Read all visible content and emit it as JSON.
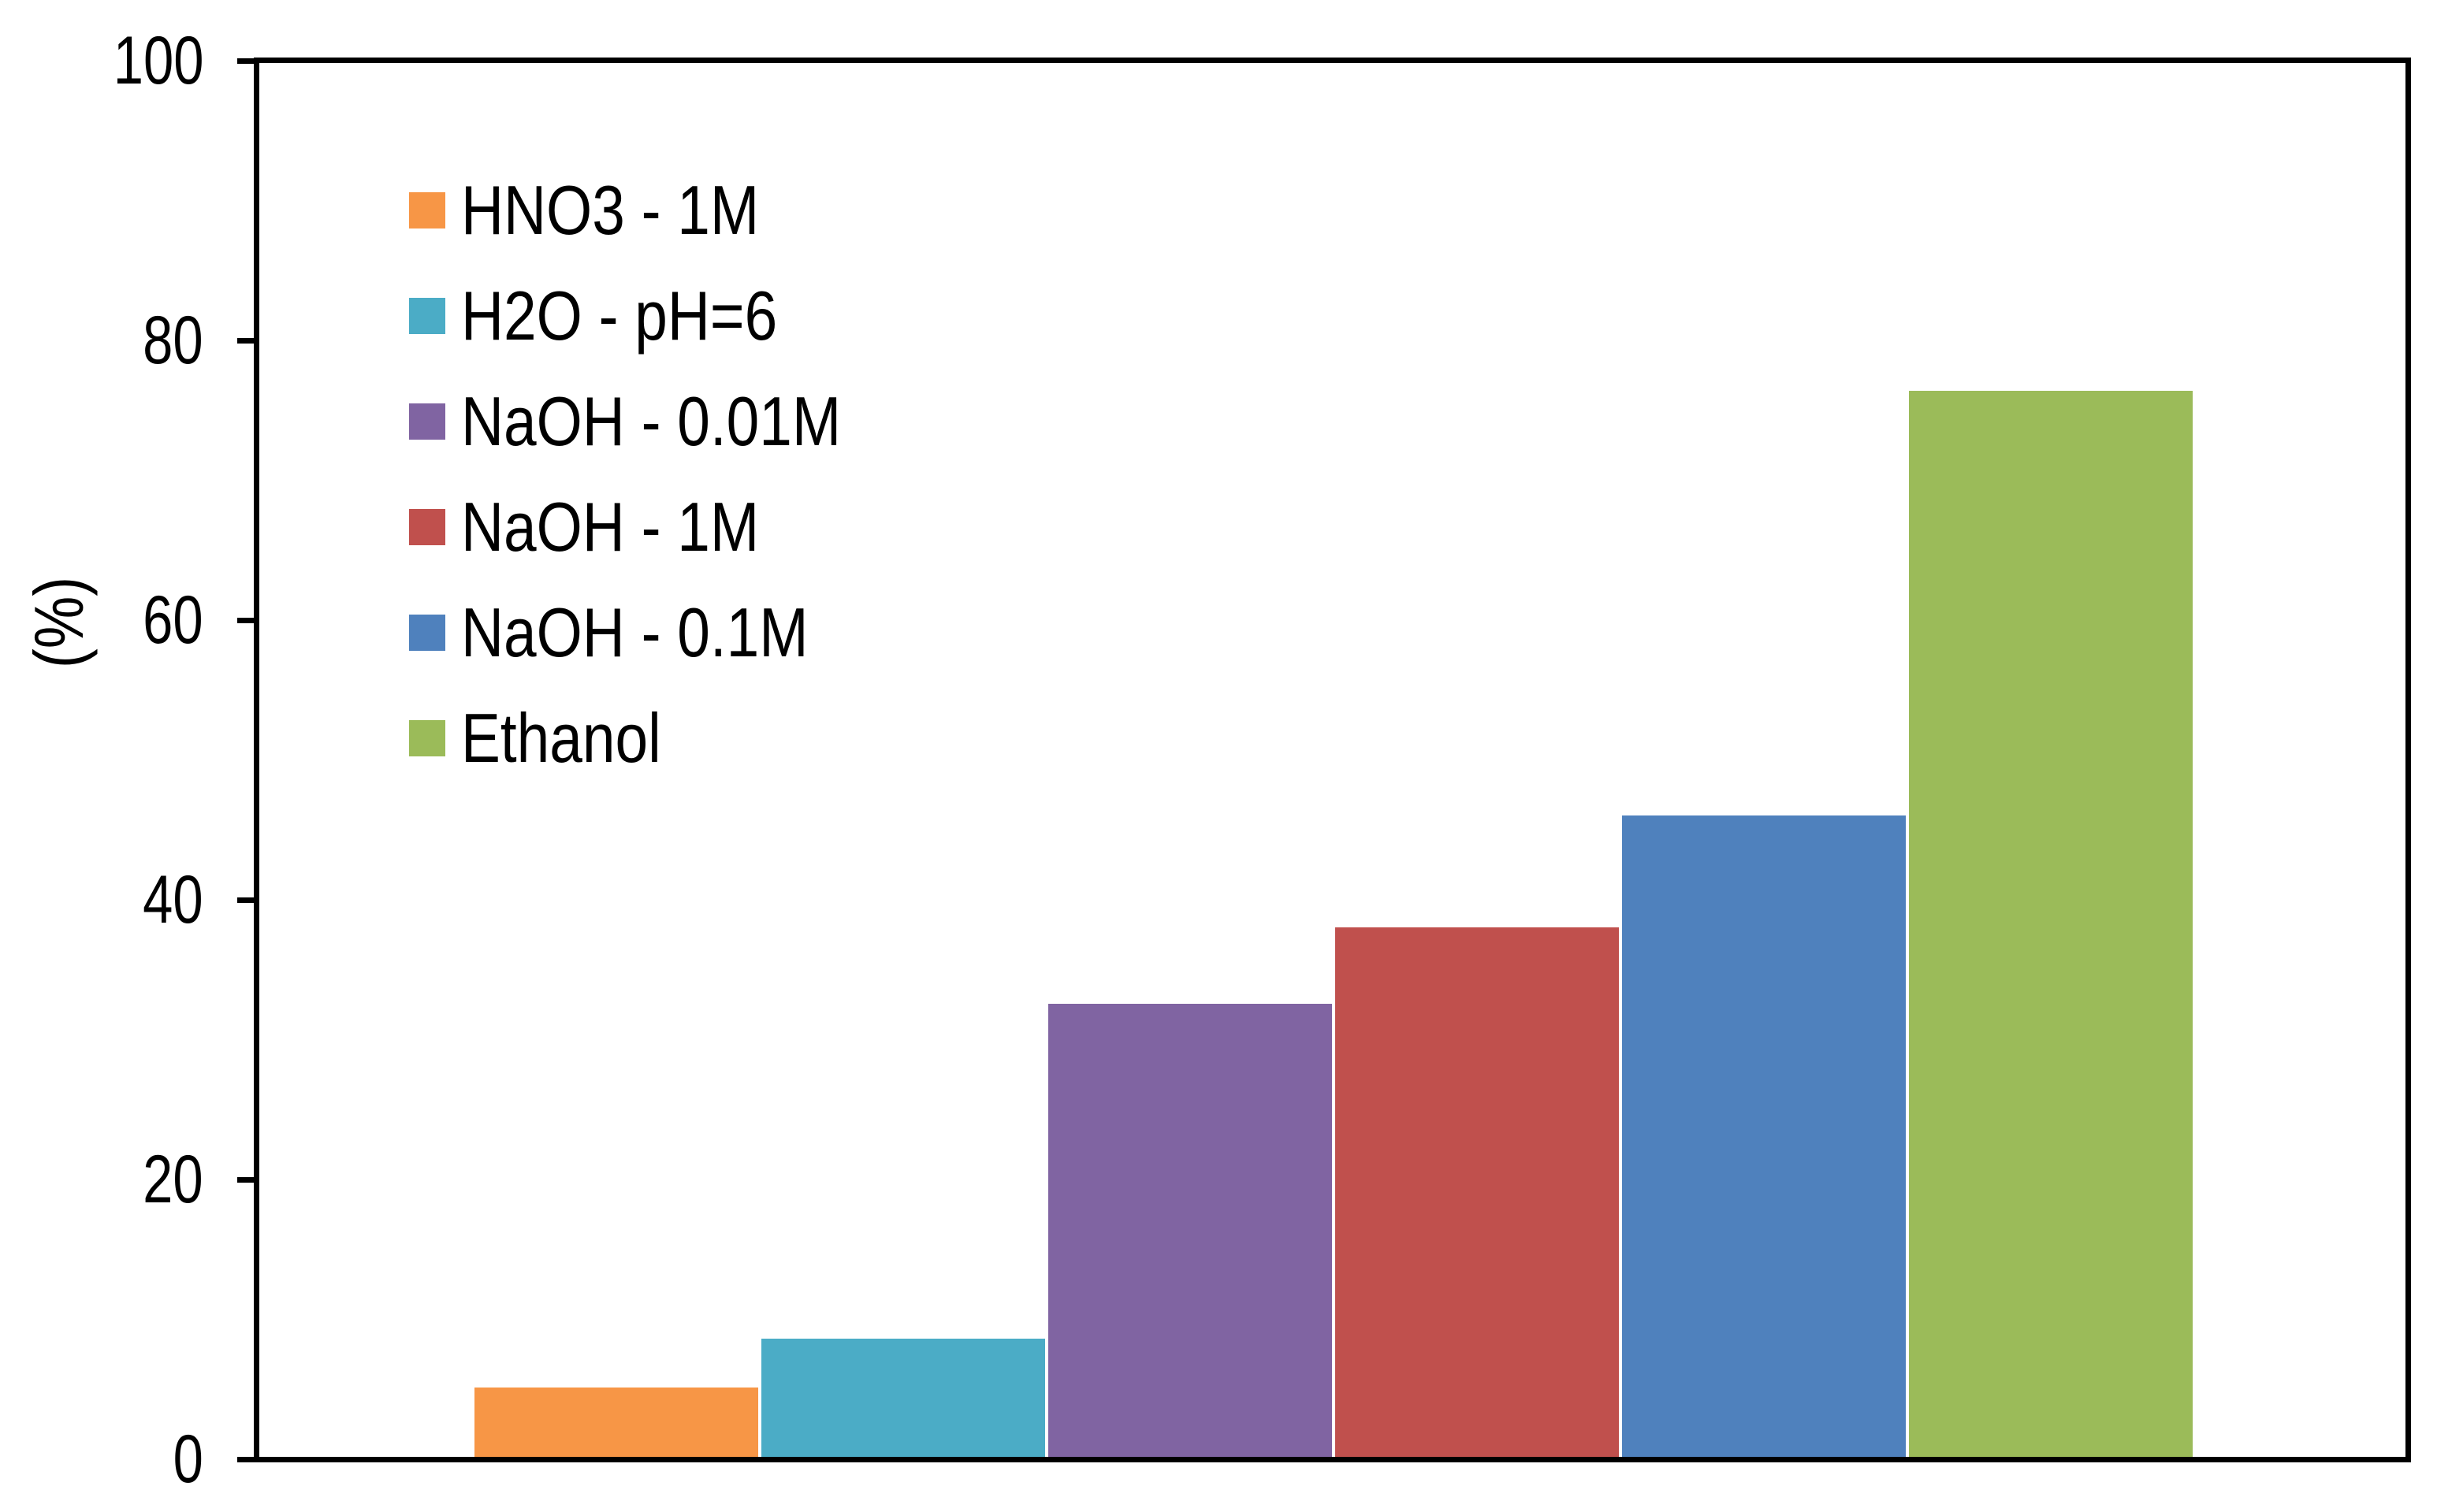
{
  "chart_data": {
    "type": "bar",
    "title": "",
    "ylabel": "(%)",
    "ylim": [
      0,
      100
    ],
    "yticks_major": [
      0,
      20,
      40,
      60,
      80,
      100
    ],
    "yticks_minor": [
      10,
      30,
      50,
      70,
      90
    ],
    "grid": false,
    "background": "#FFFFFF",
    "axis_color": "#000000",
    "legend": {
      "position": "inside-top-left"
    },
    "categories": [
      "HNO3 - 1M",
      "H2O - pH=6",
      "NaOH - 0.01M",
      "NaOH - 1M",
      "NaOH - 0.1M",
      "Ethanol"
    ],
    "values": [
      5,
      8.5,
      32.5,
      38,
      46,
      76.5
    ],
    "colors": [
      "#F79646",
      "#4BACC6",
      "#8064A2",
      "#C0504D",
      "#4F81BD",
      "#9BBB59"
    ]
  }
}
